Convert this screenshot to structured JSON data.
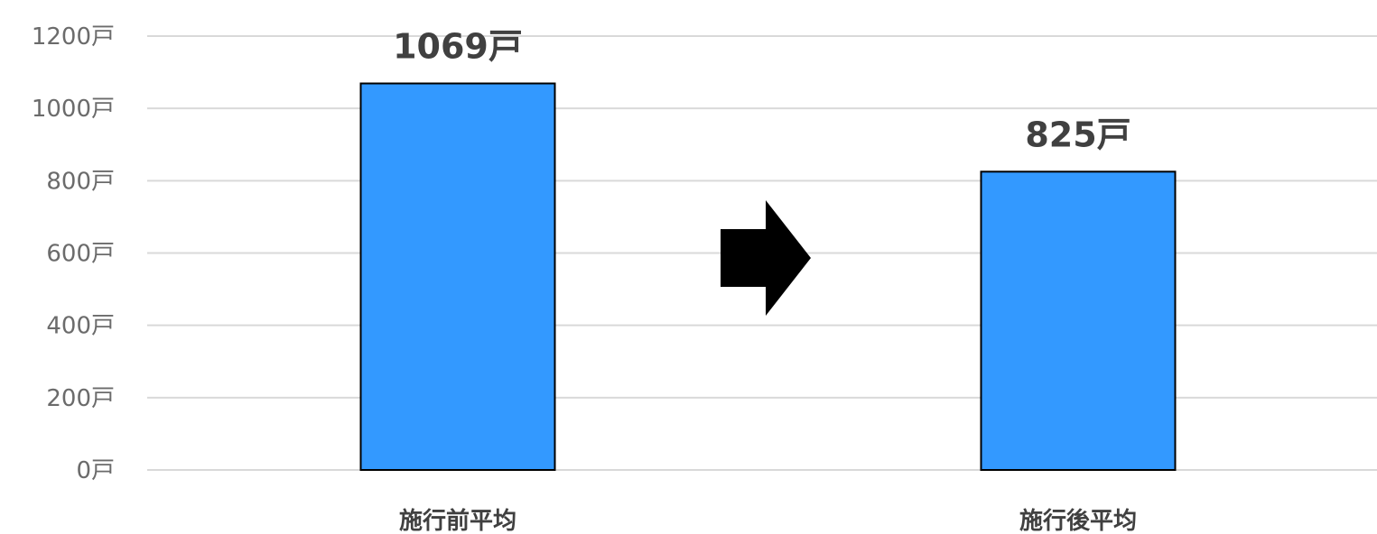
{
  "chart_data": {
    "type": "bar",
    "categories": [
      "施行前平均",
      "施行後平均"
    ],
    "values": [
      1069,
      825
    ],
    "data_labels": [
      "1069戸",
      "825戸"
    ],
    "y_ticks": [
      "0戸",
      "200戸",
      "400戸",
      "600戸",
      "800戸",
      "1000戸",
      "1200戸"
    ],
    "y_tick_values": [
      0,
      200,
      400,
      600,
      800,
      1000,
      1200
    ],
    "ylim": [
      0,
      1200
    ],
    "grid": true,
    "legend": "none",
    "bar_color": "#3399ff",
    "bar_border_color": "#000000",
    "arrow_color": "#000000",
    "annotation": "arrow-right-icon"
  }
}
